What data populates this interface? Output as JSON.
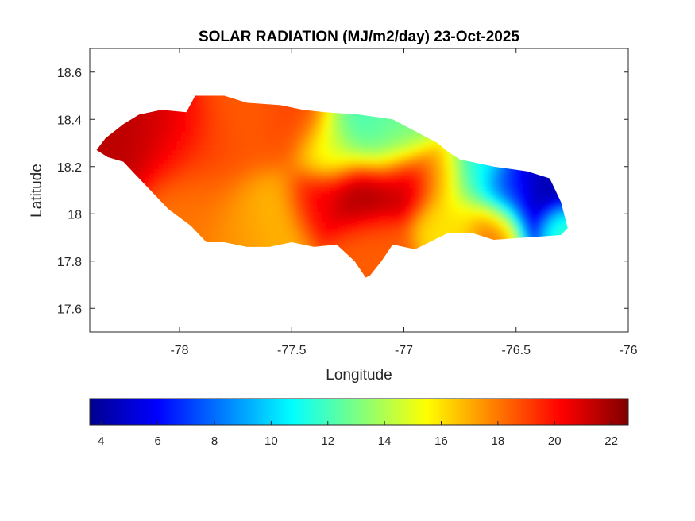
{
  "chart_data": {
    "type": "heatmap",
    "title": "SOLAR RADIATION (MJ/m2/day) 23-Oct-2025",
    "xlabel": "Longitude",
    "ylabel": "Latitude",
    "xlim": [
      -78.4,
      -76.0
    ],
    "ylim": [
      17.5,
      18.7
    ],
    "xticks": [
      -78,
      -77.5,
      -77,
      -76.5,
      -76
    ],
    "yticks": [
      17.6,
      17.8,
      18,
      18.2,
      18.4,
      18.6
    ],
    "grid": false,
    "colormap": "jet",
    "colorbar": {
      "location": "bottom",
      "clim": [
        3.6,
        22.6
      ],
      "ticks": [
        4,
        6,
        8,
        10,
        12,
        14,
        16,
        18,
        20,
        22
      ]
    },
    "region_outline": [
      [
        -78.37,
        18.27
      ],
      [
        -78.33,
        18.32
      ],
      [
        -78.25,
        18.38
      ],
      [
        -78.18,
        18.42
      ],
      [
        -78.08,
        18.44
      ],
      [
        -77.97,
        18.43
      ],
      [
        -77.93,
        18.5
      ],
      [
        -77.8,
        18.5
      ],
      [
        -77.7,
        18.47
      ],
      [
        -77.55,
        18.46
      ],
      [
        -77.45,
        18.44
      ],
      [
        -77.35,
        18.43
      ],
      [
        -77.2,
        18.42
      ],
      [
        -77.05,
        18.4
      ],
      [
        -76.95,
        18.35
      ],
      [
        -76.85,
        18.3
      ],
      [
        -76.8,
        18.26
      ],
      [
        -76.75,
        18.23
      ],
      [
        -76.6,
        18.2
      ],
      [
        -76.45,
        18.18
      ],
      [
        -76.35,
        18.15
      ],
      [
        -76.3,
        18.05
      ],
      [
        -76.27,
        17.94
      ],
      [
        -76.3,
        17.91
      ],
      [
        -76.45,
        17.9
      ],
      [
        -76.6,
        17.89
      ],
      [
        -76.7,
        17.92
      ],
      [
        -76.8,
        17.92
      ],
      [
        -76.95,
        17.85
      ],
      [
        -77.05,
        17.87
      ],
      [
        -77.1,
        17.8
      ],
      [
        -77.15,
        17.74
      ],
      [
        -77.17,
        17.73
      ],
      [
        -77.22,
        17.8
      ],
      [
        -77.3,
        17.87
      ],
      [
        -77.4,
        17.86
      ],
      [
        -77.5,
        17.88
      ],
      [
        -77.6,
        17.86
      ],
      [
        -77.7,
        17.86
      ],
      [
        -77.8,
        17.88
      ],
      [
        -77.88,
        17.88
      ],
      [
        -77.95,
        17.95
      ],
      [
        -78.05,
        18.02
      ],
      [
        -78.13,
        18.1
      ],
      [
        -78.2,
        18.17
      ],
      [
        -78.25,
        18.22
      ],
      [
        -78.32,
        18.24
      ],
      [
        -78.37,
        18.27
      ]
    ],
    "field_centers": [
      {
        "lon": -78.25,
        "lat": 18.3,
        "value": 21.5,
        "spread": 0.12
      },
      {
        "lon": -78.05,
        "lat": 18.32,
        "value": 21.0,
        "spread": 0.1
      },
      {
        "lon": -77.9,
        "lat": 18.25,
        "value": 19.0,
        "spread": 0.12
      },
      {
        "lon": -77.7,
        "lat": 18.35,
        "value": 18.5,
        "spread": 0.12
      },
      {
        "lon": -77.5,
        "lat": 18.38,
        "value": 19.0,
        "spread": 0.1
      },
      {
        "lon": -77.35,
        "lat": 18.25,
        "value": 15.0,
        "spread": 0.08
      },
      {
        "lon": -77.2,
        "lat": 18.35,
        "value": 12.0,
        "spread": 0.1
      },
      {
        "lon": -77.05,
        "lat": 18.3,
        "value": 13.0,
        "spread": 0.09
      },
      {
        "lon": -77.2,
        "lat": 18.08,
        "value": 22.0,
        "spread": 0.09
      },
      {
        "lon": -77.0,
        "lat": 18.13,
        "value": 21.5,
        "spread": 0.08
      },
      {
        "lon": -77.4,
        "lat": 18.05,
        "value": 20.5,
        "spread": 0.08
      },
      {
        "lon": -77.6,
        "lat": 18.0,
        "value": 16.5,
        "spread": 0.1
      },
      {
        "lon": -77.7,
        "lat": 17.95,
        "value": 17.5,
        "spread": 0.1
      },
      {
        "lon": -77.95,
        "lat": 18.05,
        "value": 18.0,
        "spread": 0.12
      },
      {
        "lon": -77.15,
        "lat": 17.85,
        "value": 18.5,
        "spread": 0.09
      },
      {
        "lon": -76.85,
        "lat": 18.15,
        "value": 17.5,
        "spread": 0.07
      },
      {
        "lon": -76.8,
        "lat": 17.98,
        "value": 16.0,
        "spread": 0.09
      },
      {
        "lon": -76.7,
        "lat": 18.15,
        "value": 11.0,
        "spread": 0.08
      },
      {
        "lon": -76.42,
        "lat": 18.05,
        "value": 4.5,
        "spread": 0.09
      },
      {
        "lon": -76.55,
        "lat": 18.08,
        "value": 7.0,
        "spread": 0.07
      },
      {
        "lon": -76.6,
        "lat": 17.95,
        "value": 18.5,
        "spread": 0.07
      },
      {
        "lon": -76.32,
        "lat": 17.94,
        "value": 12.5,
        "spread": 0.05
      }
    ]
  }
}
